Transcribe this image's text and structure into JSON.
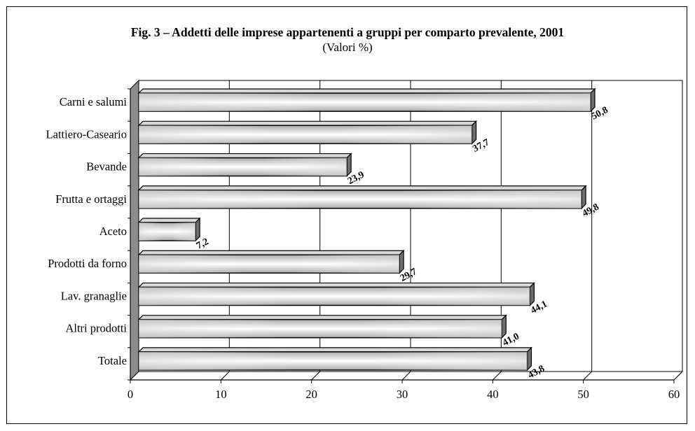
{
  "chart_data": {
    "type": "bar",
    "orientation": "horizontal",
    "title": "Fig. 3 – Addetti delle imprese appartenenti a gruppi per comparto prevalente, 2001",
    "subtitle": "(Valori %)",
    "categories": [
      "Carni e salumi",
      "Lattiero-Caseario",
      "Bevande",
      "Frutta e ortaggi",
      "Aceto",
      "Prodotti da forno",
      "Lav. granaglie",
      "Altri prodotti",
      "Totale"
    ],
    "values": [
      50.8,
      37.7,
      23.9,
      49.8,
      7.2,
      29.7,
      44.1,
      41.0,
      43.8
    ],
    "value_labels": [
      "50,8",
      "37,7",
      "23,9",
      "49,8",
      "7,2",
      "29,7",
      "44,1",
      "41,0",
      "43,8"
    ],
    "xlim": [
      0,
      60
    ],
    "xticks": [
      "0",
      "10",
      "20",
      "30",
      "40",
      "50",
      "60"
    ],
    "grid": true,
    "legend": "none",
    "style": "3d",
    "colors": {
      "bar_light": "#ffffff",
      "bar_mid": "#cfcfcf",
      "bar_dark": "#9a9a9a",
      "bar_top": "#d8d8d8",
      "bar_side": "#6e6e6e",
      "wall": "#8c8c8c",
      "floor": "#ffffff"
    }
  }
}
